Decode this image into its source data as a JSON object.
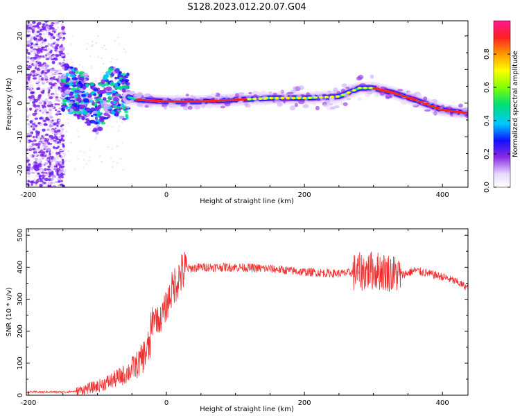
{
  "title": "S128.2023.012.20.07.G04",
  "chart_data": [
    {
      "type": "heatmap",
      "xlabel": "Height of straight line (km)",
      "ylabel": "Frequency (Hz)",
      "xlim": [
        -203,
        437
      ],
      "ylim": [
        -25,
        24.5
      ],
      "xticks": [
        -200,
        0,
        200,
        400
      ],
      "yticks": [
        -20,
        -10,
        0,
        10,
        20
      ],
      "colorbar": {
        "label": "Normalized spectral amplitude",
        "range": [
          0,
          1
        ],
        "ticks": [
          0.0,
          0.2,
          0.4,
          0.6,
          0.8
        ]
      },
      "ridge": {
        "height_km": [
          -150,
          -120,
          -100,
          -80,
          -60,
          -40,
          0,
          50,
          100,
          150,
          200,
          250,
          280,
          300,
          330,
          360,
          400,
          437
        ],
        "frequency_hz": [
          5,
          2,
          -2,
          4,
          2,
          1,
          0.5,
          0.5,
          1,
          1.5,
          1.5,
          2,
          4.5,
          4.5,
          3,
          1,
          -2,
          -3
        ]
      }
    },
    {
      "type": "line",
      "xlabel": "Height of straight line (km)",
      "ylabel": "SNR (10 * v/v)",
      "xlim": [
        -203,
        437
      ],
      "ylim": [
        0,
        520
      ],
      "xticks": [
        -200,
        0,
        200,
        400
      ],
      "yticks": [
        0,
        100,
        200,
        300,
        400,
        500
      ],
      "series": [
        {
          "color": "#f03030",
          "x": [
            -203,
            -180,
            -150,
            -130,
            -120,
            -100,
            -80,
            -60,
            -40,
            -25,
            -18,
            -10,
            0,
            10,
            20,
            30,
            50,
            80,
            100,
            150,
            200,
            250,
            280,
            300,
            320,
            340,
            360,
            400,
            420,
            437
          ],
          "y": [
            10,
            10,
            10,
            12,
            18,
            28,
            45,
            65,
            100,
            150,
            250,
            230,
            280,
            340,
            375,
            395,
            400,
            400,
            400,
            395,
            385,
            380,
            385,
            390,
            385,
            375,
            390,
            370,
            355,
            335
          ]
        }
      ]
    }
  ]
}
